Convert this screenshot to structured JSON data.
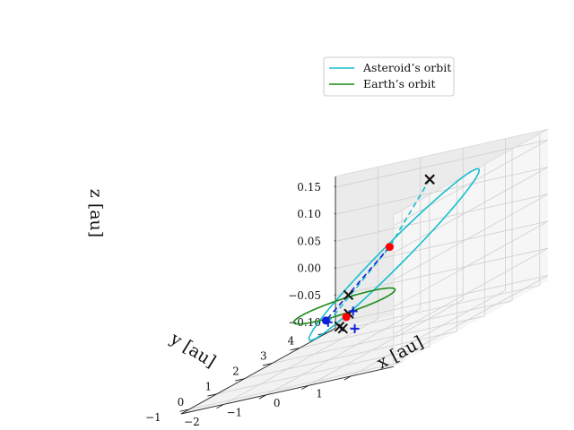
{
  "chart_data": {
    "type": "3d-line",
    "axis_labels": {
      "x": "x [au]",
      "y": "y [au]",
      "z": "z [au]"
    },
    "axes": {
      "x": {
        "ticks": [
          "−2",
          "−1",
          "0",
          "1"
        ],
        "tick_values": [
          -2,
          -1,
          0,
          1
        ],
        "range": [
          -3,
          2
        ]
      },
      "y": {
        "ticks": [
          "−1",
          "0",
          "1",
          "2",
          "3",
          "4"
        ],
        "tick_values": [
          -1,
          0,
          1,
          2,
          3,
          4
        ],
        "range": [
          -1.3,
          4.3
        ]
      },
      "z": {
        "ticks": [
          "−0.10",
          "−0.05",
          "0.00",
          "0.05",
          "0.10",
          "0.15"
        ],
        "tick_values": [
          -0.1,
          -0.05,
          0.0,
          0.05,
          0.1,
          0.15
        ],
        "range": [
          -0.11,
          0.17
        ]
      }
    },
    "grid": true,
    "legend": {
      "placement": "top-right",
      "entries": [
        {
          "label": "Asteroid’s orbit",
          "color": "#17becf"
        },
        {
          "label": "Earth’s orbit",
          "color": "#1a8a1a"
        }
      ]
    },
    "series": [
      {
        "name": "Asteroid’s orbit",
        "style": "solid",
        "color": "#17becf",
        "orbit": {
          "a": 2.55,
          "e": 0.6,
          "perihelion_dir": [
            -0.12,
            -0.993,
            -0.003
          ],
          "aphelion_z": 0.13,
          "width_au": 0.5
        }
      },
      {
        "name": "Earth’s orbit",
        "style": "solid",
        "color": "#1a8a1a",
        "orbit": {
          "center": [
            0,
            0,
            0
          ],
          "radius": 1.0
        }
      },
      {
        "style": "dashed",
        "color": "#17becf",
        "points": [
          [
            -0.62,
            4.05,
            0.13
          ],
          [
            -0.3,
            2.1,
            0.055
          ],
          [
            0.18,
            -0.9,
            -0.01
          ]
        ]
      },
      {
        "style": "dashed",
        "color": "#1020d8",
        "points": [
          [
            -0.3,
            2.1,
            0.055
          ],
          [
            0.15,
            -0.9,
            -0.004
          ]
        ]
      }
    ],
    "markers": [
      {
        "kind": "x",
        "color": "#8b0000",
        "point": [
          -0.62,
          4.05,
          0.13
        ]
      },
      {
        "kind": "x",
        "color": "#111111",
        "point": [
          -0.62,
          4.05,
          0.13
        ]
      },
      {
        "kind": "dot",
        "color": "#ff0000",
        "point": [
          -0.3,
          2.1,
          0.055
        ]
      },
      {
        "kind": "x",
        "color": "#111111",
        "point": [
          -0.62,
          1.1,
          0.0
        ]
      },
      {
        "kind": "x",
        "color": "#111111",
        "point": [
          0.5,
          -0.95,
          -0.02
        ]
      },
      {
        "kind": "x",
        "color": "#111111",
        "point": [
          0.58,
          -0.95,
          -0.025
        ]
      },
      {
        "kind": "x",
        "color": "#111111",
        "point": [
          0.72,
          -0.95,
          0.0
        ]
      },
      {
        "kind": "plus",
        "color": "#1020d8",
        "point": [
          0.2,
          -0.9,
          -0.008
        ]
      },
      {
        "kind": "plus",
        "color": "#1020d8",
        "point": [
          0.82,
          -0.95,
          0.003
        ]
      },
      {
        "kind": "plus",
        "color": "#1020d8",
        "point": [
          0.86,
          -0.95,
          -0.03
        ]
      },
      {
        "kind": "dot",
        "color": "#1020d8",
        "point": [
          0.15,
          -0.9,
          -0.004
        ]
      },
      {
        "kind": "dot",
        "color": "#ff0000",
        "point": [
          0.66,
          -0.95,
          -0.005
        ]
      }
    ]
  }
}
